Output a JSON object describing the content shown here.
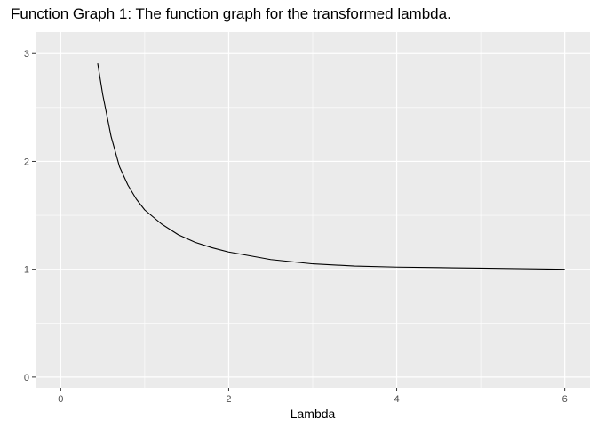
{
  "chart_data": {
    "type": "line",
    "title": "Function Graph 1: The function graph for the transformed lambda.",
    "xlabel": "Lambda",
    "ylabel": "",
    "xlim": [
      -0.3,
      6.3
    ],
    "ylim": [
      -0.1,
      3.2
    ],
    "x_ticks": [
      0,
      2,
      4,
      6
    ],
    "x_tick_labels": [
      "0",
      "2",
      "4",
      "6"
    ],
    "y_ticks": [
      0,
      1,
      2,
      3
    ],
    "y_tick_labels": [
      "0",
      "1",
      "2",
      "3"
    ],
    "grid": true,
    "theme": "grey-panel",
    "colors": {
      "panel": "#EBEBEB",
      "grid": "#FFFFFF",
      "line": "#000000",
      "tick_text": "#4D4D4D",
      "tick_mark": "#333333"
    },
    "series": [
      {
        "x": [
          0.44,
          0.5,
          0.6,
          0.7,
          0.8,
          0.9,
          1.0,
          1.2,
          1.4,
          1.6,
          1.8,
          2.0,
          2.5,
          3.0,
          3.5,
          4.0,
          4.5,
          5.0,
          5.5,
          6.0
        ],
        "values": [
          2.91,
          2.62,
          2.23,
          1.95,
          1.78,
          1.65,
          1.55,
          1.42,
          1.32,
          1.25,
          1.2,
          1.16,
          1.09,
          1.05,
          1.03,
          1.02,
          1.015,
          1.01,
          1.005,
          1.0
        ]
      }
    ]
  }
}
